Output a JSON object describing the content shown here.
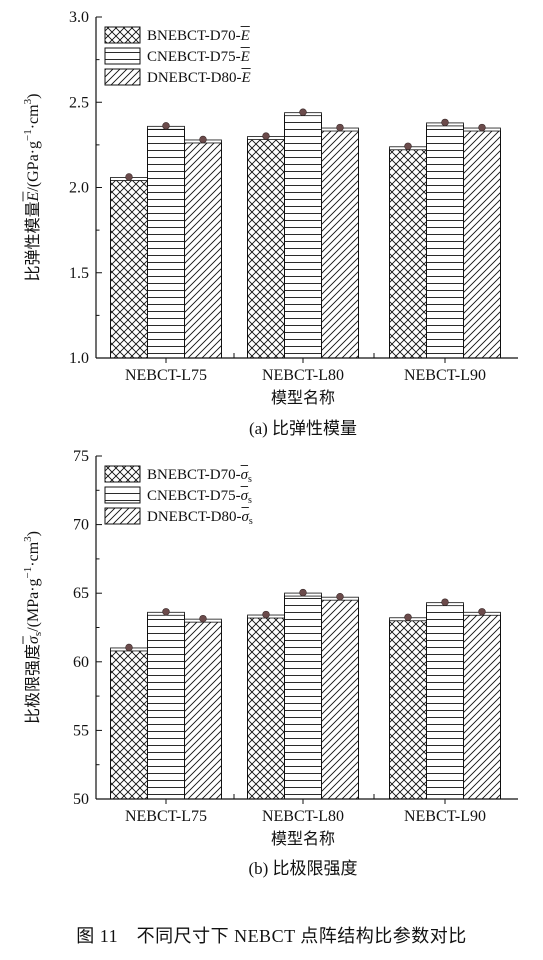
{
  "figure_caption": "图 11　不同尺寸下 NEBCT 点阵结构比参数对比",
  "chart_data": [
    {
      "type": "bar",
      "title": "",
      "caption": "(a) 比弹性模量",
      "xlabel": "模型名称",
      "ylabel_main": "比弹性模量",
      "ylabel_symbol": "E",
      "ylabel_unit": "/(GPa·g",
      "ylabel_sup": "−1",
      "ylabel_unit2": "·cm",
      "ylabel_sup2": "3",
      "ylabel_end": ")",
      "ylim": [
        1.0,
        3.0
      ],
      "yticks": [
        "1.0",
        "1.5",
        "2.0",
        "2.5",
        "3.0"
      ],
      "categories": [
        "NEBCT-L75",
        "NEBCT-L80",
        "NEBCT-L90"
      ],
      "legend_position": "top-left",
      "grid": false,
      "series": [
        {
          "name": "BNEBCT-D70-",
          "symbol": "E",
          "pattern": "crosshatch",
          "values": [
            2.05,
            2.29,
            2.23
          ]
        },
        {
          "name": "CNEBCT-D75-",
          "symbol": "E",
          "pattern": "horizontal",
          "values": [
            2.35,
            2.43,
            2.37
          ]
        },
        {
          "name": "DNEBCT-D80-",
          "symbol": "E",
          "pattern": "diagonal",
          "values": [
            2.27,
            2.34,
            2.34
          ]
        }
      ]
    },
    {
      "type": "bar",
      "title": "",
      "caption": "(b) 比极限强度",
      "xlabel": "模型名称",
      "ylabel_main": "比极限强度",
      "ylabel_symbol": "σ",
      "ylabel_symbol_sub": "s",
      "ylabel_unit": "/(MPa·g",
      "ylabel_sup": "−1",
      "ylabel_unit2": "·cm",
      "ylabel_sup2": "3",
      "ylabel_end": ")",
      "ylim": [
        50,
        75
      ],
      "yticks": [
        "50",
        "55",
        "60",
        "65",
        "70",
        "75"
      ],
      "categories": [
        "NEBCT-L75",
        "NEBCT-L80",
        "NEBCT-L90"
      ],
      "legend_position": "top-left",
      "grid": false,
      "series": [
        {
          "name": "BNEBCT-D70-",
          "symbol": "σ",
          "symbol_sub": "s",
          "pattern": "crosshatch",
          "values": [
            60.9,
            63.3,
            63.1
          ]
        },
        {
          "name": "CNEBCT-D75-",
          "symbol": "σ",
          "symbol_sub": "s",
          "pattern": "horizontal",
          "values": [
            63.5,
            64.9,
            64.2
          ]
        },
        {
          "name": "DNEBCT-D80-",
          "symbol": "σ",
          "symbol_sub": "s",
          "pattern": "diagonal",
          "values": [
            63.0,
            64.6,
            63.5
          ]
        }
      ]
    }
  ]
}
